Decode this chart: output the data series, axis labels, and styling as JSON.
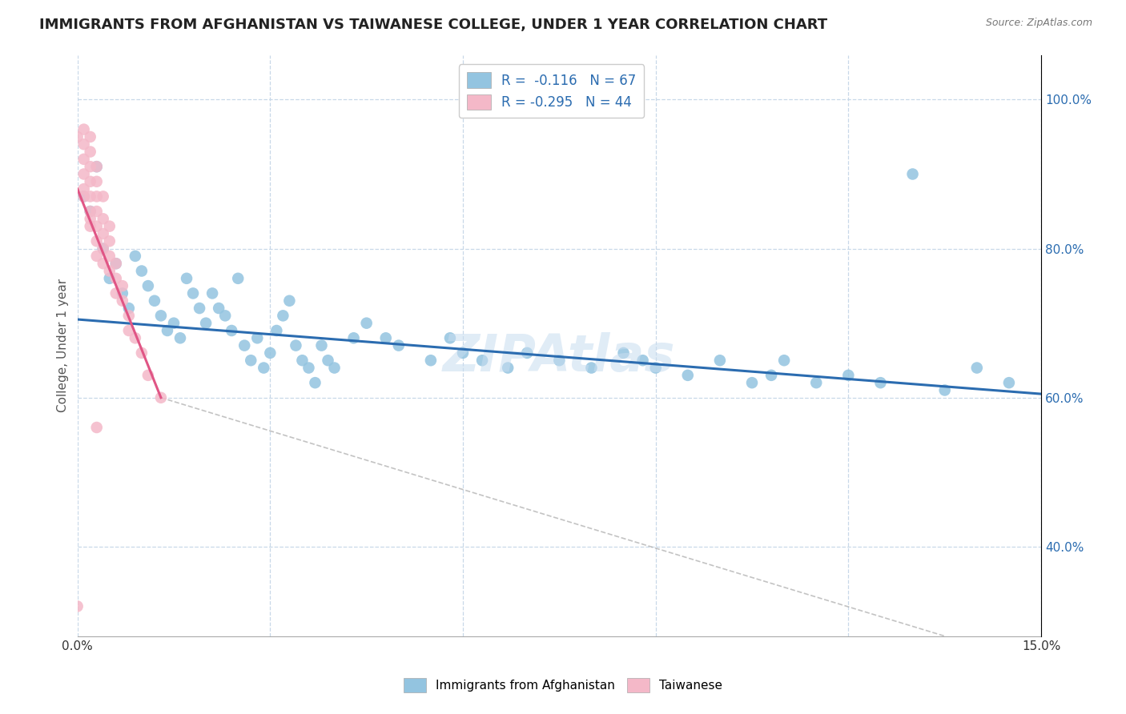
{
  "title": "IMMIGRANTS FROM AFGHANISTAN VS TAIWANESE COLLEGE, UNDER 1 YEAR CORRELATION CHART",
  "source": "Source: ZipAtlas.com",
  "ylabel": "College, Under 1 year",
  "xlim": [
    0.0,
    0.15
  ],
  "ylim": [
    0.28,
    1.06
  ],
  "xticks": [
    0.0,
    0.03,
    0.06,
    0.09,
    0.12,
    0.15
  ],
  "xtick_labels": [
    "0.0%",
    "",
    "",
    "",
    "",
    "15.0%"
  ],
  "yticks": [
    0.4,
    0.6,
    0.8,
    1.0
  ],
  "right_ytick_labels": [
    "40.0%",
    "60.0%",
    "80.0%",
    "100.0%"
  ],
  "blue_color": "#93c4e0",
  "pink_color": "#f4b8c8",
  "blue_line_color": "#2b6cb0",
  "pink_line_color": "#e05585",
  "grid_color": "#c8d8e8",
  "blue_scatter": [
    [
      0.001,
      0.87
    ],
    [
      0.002,
      0.85
    ],
    [
      0.003,
      0.91
    ],
    [
      0.004,
      0.8
    ],
    [
      0.005,
      0.76
    ],
    [
      0.006,
      0.78
    ],
    [
      0.007,
      0.74
    ],
    [
      0.008,
      0.72
    ],
    [
      0.009,
      0.79
    ],
    [
      0.01,
      0.77
    ],
    [
      0.011,
      0.75
    ],
    [
      0.012,
      0.73
    ],
    [
      0.013,
      0.71
    ],
    [
      0.014,
      0.69
    ],
    [
      0.015,
      0.7
    ],
    [
      0.016,
      0.68
    ],
    [
      0.017,
      0.76
    ],
    [
      0.018,
      0.74
    ],
    [
      0.019,
      0.72
    ],
    [
      0.02,
      0.7
    ],
    [
      0.021,
      0.74
    ],
    [
      0.022,
      0.72
    ],
    [
      0.023,
      0.71
    ],
    [
      0.024,
      0.69
    ],
    [
      0.025,
      0.76
    ],
    [
      0.026,
      0.67
    ],
    [
      0.027,
      0.65
    ],
    [
      0.028,
      0.68
    ],
    [
      0.029,
      0.64
    ],
    [
      0.03,
      0.66
    ],
    [
      0.031,
      0.69
    ],
    [
      0.032,
      0.71
    ],
    [
      0.033,
      0.73
    ],
    [
      0.034,
      0.67
    ],
    [
      0.035,
      0.65
    ],
    [
      0.036,
      0.64
    ],
    [
      0.037,
      0.62
    ],
    [
      0.038,
      0.67
    ],
    [
      0.039,
      0.65
    ],
    [
      0.04,
      0.64
    ],
    [
      0.043,
      0.68
    ],
    [
      0.045,
      0.7
    ],
    [
      0.048,
      0.68
    ],
    [
      0.05,
      0.67
    ],
    [
      0.055,
      0.65
    ],
    [
      0.058,
      0.68
    ],
    [
      0.06,
      0.66
    ],
    [
      0.063,
      0.65
    ],
    [
      0.067,
      0.64
    ],
    [
      0.07,
      0.66
    ],
    [
      0.075,
      0.65
    ],
    [
      0.08,
      0.64
    ],
    [
      0.085,
      0.66
    ],
    [
      0.088,
      0.65
    ],
    [
      0.09,
      0.64
    ],
    [
      0.095,
      0.63
    ],
    [
      0.1,
      0.65
    ],
    [
      0.105,
      0.62
    ],
    [
      0.108,
      0.63
    ],
    [
      0.11,
      0.65
    ],
    [
      0.115,
      0.62
    ],
    [
      0.12,
      0.63
    ],
    [
      0.125,
      0.62
    ],
    [
      0.13,
      0.9
    ],
    [
      0.135,
      0.61
    ],
    [
      0.14,
      0.64
    ],
    [
      0.145,
      0.62
    ]
  ],
  "pink_scatter": [
    [
      0.0,
      0.95
    ],
    [
      0.001,
      0.96
    ],
    [
      0.001,
      0.94
    ],
    [
      0.001,
      0.92
    ],
    [
      0.001,
      0.9
    ],
    [
      0.001,
      0.88
    ],
    [
      0.001,
      0.87
    ],
    [
      0.002,
      0.95
    ],
    [
      0.002,
      0.93
    ],
    [
      0.002,
      0.91
    ],
    [
      0.002,
      0.89
    ],
    [
      0.002,
      0.87
    ],
    [
      0.002,
      0.85
    ],
    [
      0.002,
      0.84
    ],
    [
      0.002,
      0.83
    ],
    [
      0.003,
      0.91
    ],
    [
      0.003,
      0.89
    ],
    [
      0.003,
      0.87
    ],
    [
      0.003,
      0.85
    ],
    [
      0.003,
      0.83
    ],
    [
      0.003,
      0.81
    ],
    [
      0.003,
      0.79
    ],
    [
      0.004,
      0.87
    ],
    [
      0.004,
      0.84
    ],
    [
      0.004,
      0.82
    ],
    [
      0.004,
      0.8
    ],
    [
      0.004,
      0.78
    ],
    [
      0.005,
      0.83
    ],
    [
      0.005,
      0.81
    ],
    [
      0.005,
      0.79
    ],
    [
      0.005,
      0.77
    ],
    [
      0.006,
      0.78
    ],
    [
      0.006,
      0.76
    ],
    [
      0.006,
      0.74
    ],
    [
      0.007,
      0.75
    ],
    [
      0.007,
      0.73
    ],
    [
      0.008,
      0.71
    ],
    [
      0.008,
      0.69
    ],
    [
      0.009,
      0.68
    ],
    [
      0.01,
      0.66
    ],
    [
      0.011,
      0.63
    ],
    [
      0.013,
      0.6
    ],
    [
      0.003,
      0.56
    ],
    [
      0.0,
      0.32
    ]
  ],
  "blue_trend_x": [
    0.0,
    0.15
  ],
  "blue_trend_y": [
    0.705,
    0.605
  ],
  "pink_trend_x": [
    0.0,
    0.013
  ],
  "pink_trend_y": [
    0.88,
    0.6
  ],
  "dashed_line_x": [
    0.013,
    0.135
  ],
  "dashed_line_y": [
    0.6,
    0.28
  ]
}
